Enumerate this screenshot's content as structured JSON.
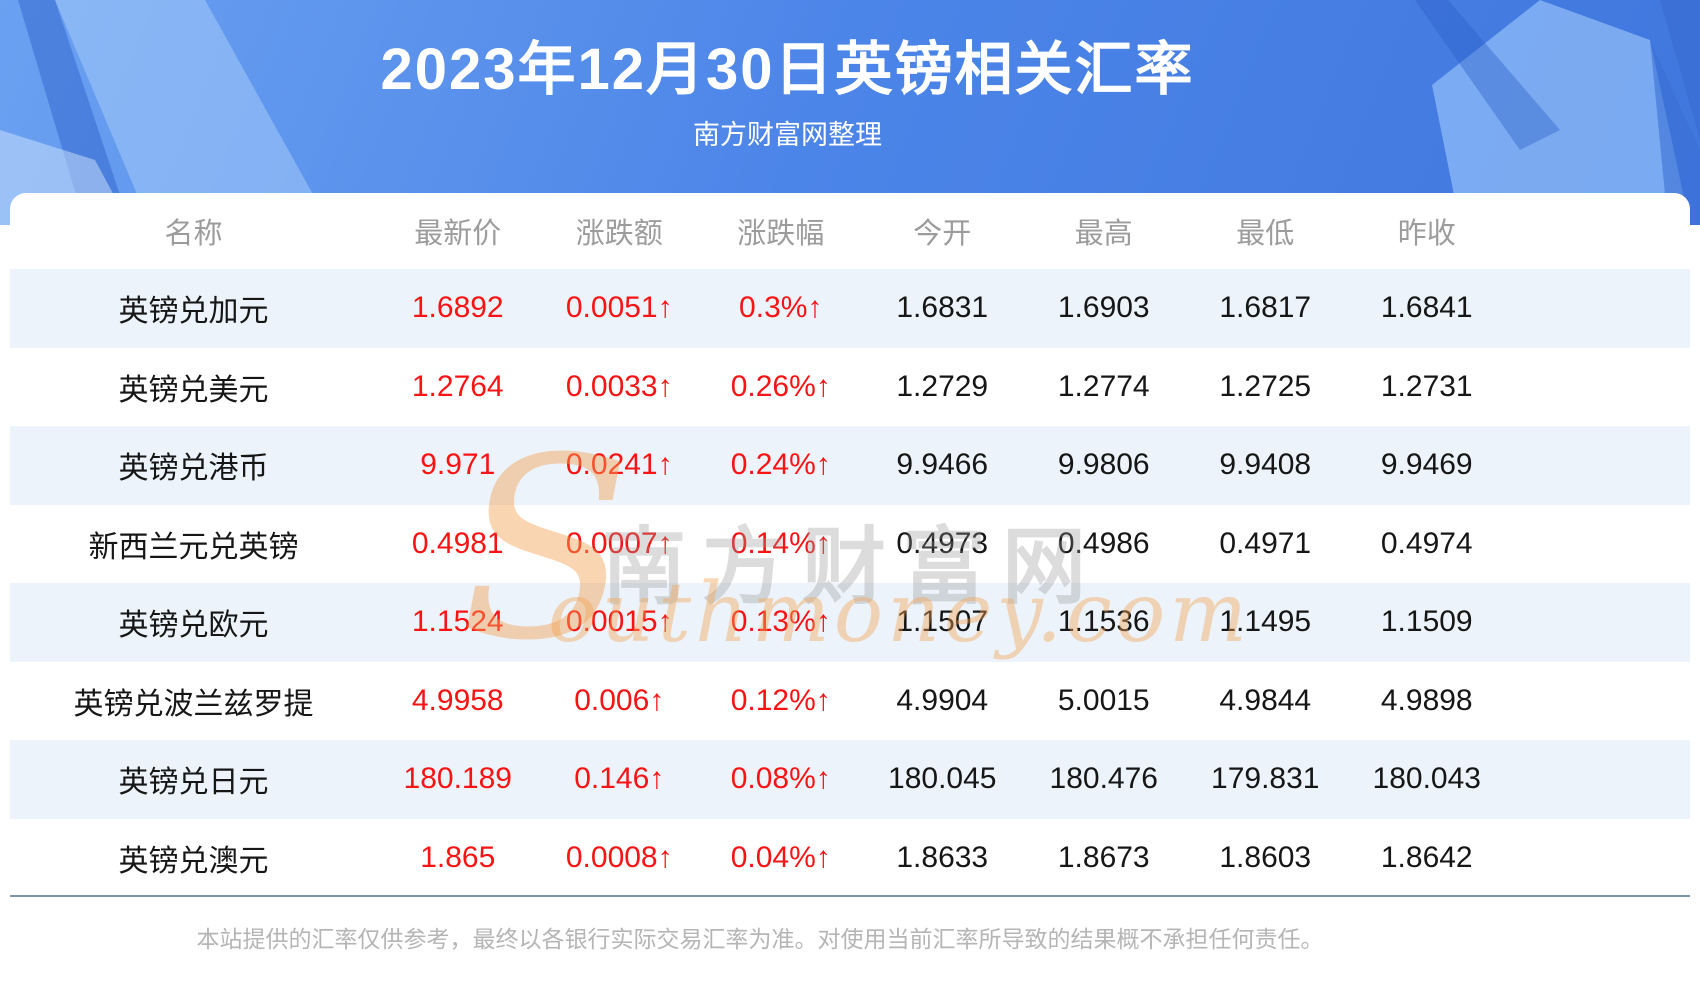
{
  "header": {
    "title": "2023年12月30日英镑相关汇率",
    "subtitle": "南方财富网整理"
  },
  "table": {
    "columns": [
      "名称",
      "最新价",
      "涨跌额",
      "涨跌幅",
      "今开",
      "最高",
      "最低",
      "昨收"
    ],
    "rows": [
      {
        "name": "英镑兑加元",
        "latest": "1.6892",
        "change": "0.0051↑",
        "change_pct": "0.3%↑",
        "open": "1.6831",
        "high": "1.6903",
        "low": "1.6817",
        "prev_close": "1.6841"
      },
      {
        "name": "英镑兑美元",
        "latest": "1.2764",
        "change": "0.0033↑",
        "change_pct": "0.26%↑",
        "open": "1.2729",
        "high": "1.2774",
        "low": "1.2725",
        "prev_close": "1.2731"
      },
      {
        "name": "英镑兑港币",
        "latest": "9.971",
        "change": "0.0241↑",
        "change_pct": "0.24%↑",
        "open": "9.9466",
        "high": "9.9806",
        "low": "9.9408",
        "prev_close": "9.9469"
      },
      {
        "name": "新西兰元兑英镑",
        "latest": "0.4981",
        "change": "0.0007↑",
        "change_pct": "0.14%↑",
        "open": "0.4973",
        "high": "0.4986",
        "low": "0.4971",
        "prev_close": "0.4974"
      },
      {
        "name": "英镑兑欧元",
        "latest": "1.1524",
        "change": "0.0015↑",
        "change_pct": "0.13%↑",
        "open": "1.1507",
        "high": "1.1536",
        "low": "1.1495",
        "prev_close": "1.1509"
      },
      {
        "name": "英镑兑波兰兹罗提",
        "latest": "4.9958",
        "change": "0.006↑",
        "change_pct": "0.12%↑",
        "open": "4.9904",
        "high": "5.0015",
        "low": "4.9844",
        "prev_close": "4.9898"
      },
      {
        "name": "英镑兑日元",
        "latest": "180.189",
        "change": "0.146↑",
        "change_pct": "0.08%↑",
        "open": "180.045",
        "high": "180.476",
        "low": "179.831",
        "prev_close": "180.043"
      },
      {
        "name": "英镑兑澳元",
        "latest": "1.865",
        "change": "0.0008↑",
        "change_pct": "0.04%↑",
        "open": "1.8633",
        "high": "1.8673",
        "low": "1.8603",
        "prev_close": "1.8642"
      }
    ]
  },
  "watermark": {
    "s_glyph": "S",
    "cn": "南方财富网",
    "en": "outhmoney.com"
  },
  "footer": {
    "disclaimer": "本站提供的汇率仅供参考，最终以各银行实际交易汇率为准。对使用当前汇率所导致的结果概不承担任何责任。"
  },
  "colors": {
    "hero_blue": "#4c85e8",
    "stripe_blue": "#ecf3fa",
    "up_red": "#f81414",
    "header_gray": "#9c9c9c",
    "divider_blue_gray": "#7d96ac",
    "disclaimer_gray": "#b5b5b5",
    "watermark_orange": "#f4a254"
  }
}
